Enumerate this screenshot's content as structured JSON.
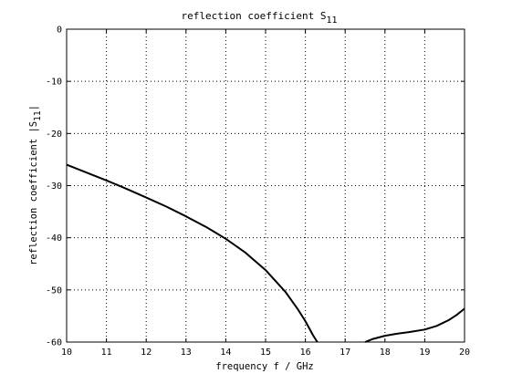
{
  "chart_data": {
    "type": "line",
    "title": {
      "main": "reflection coefficient S",
      "sub": "11"
    },
    "xlabel": "frequency f / GHz",
    "ylabel": {
      "main": "reflection coefficient |S",
      "sub": "11",
      "end": "|"
    },
    "xlim": [
      10,
      20
    ],
    "ylim": [
      -60,
      0
    ],
    "xticks": [
      10,
      11,
      12,
      13,
      14,
      15,
      16,
      17,
      18,
      19,
      20
    ],
    "yticks": [
      0,
      -10,
      -20,
      -30,
      -40,
      -50,
      -60
    ],
    "grid": true,
    "series": [
      {
        "color": "#000000",
        "segments": [
          [
            [
              10.0,
              -26.0
            ],
            [
              10.5,
              -27.5
            ],
            [
              11.0,
              -29.0
            ],
            [
              11.5,
              -30.6
            ],
            [
              12.0,
              -32.3
            ],
            [
              12.5,
              -34.0
            ],
            [
              13.0,
              -35.9
            ],
            [
              13.5,
              -37.9
            ],
            [
              14.0,
              -40.2
            ],
            [
              14.5,
              -42.9
            ],
            [
              15.0,
              -46.2
            ],
            [
              15.5,
              -50.4
            ],
            [
              15.8,
              -53.6
            ],
            [
              16.0,
              -56.0
            ],
            [
              16.2,
              -58.8
            ],
            [
              16.3,
              -60.0
            ]
          ],
          [
            [
              17.5,
              -60.0
            ],
            [
              17.7,
              -59.4
            ],
            [
              18.0,
              -58.8
            ],
            [
              18.3,
              -58.4
            ],
            [
              18.6,
              -58.1
            ],
            [
              19.0,
              -57.6
            ],
            [
              19.3,
              -56.9
            ],
            [
              19.6,
              -55.8
            ],
            [
              19.8,
              -54.8
            ],
            [
              20.0,
              -53.6
            ]
          ]
        ]
      }
    ]
  }
}
